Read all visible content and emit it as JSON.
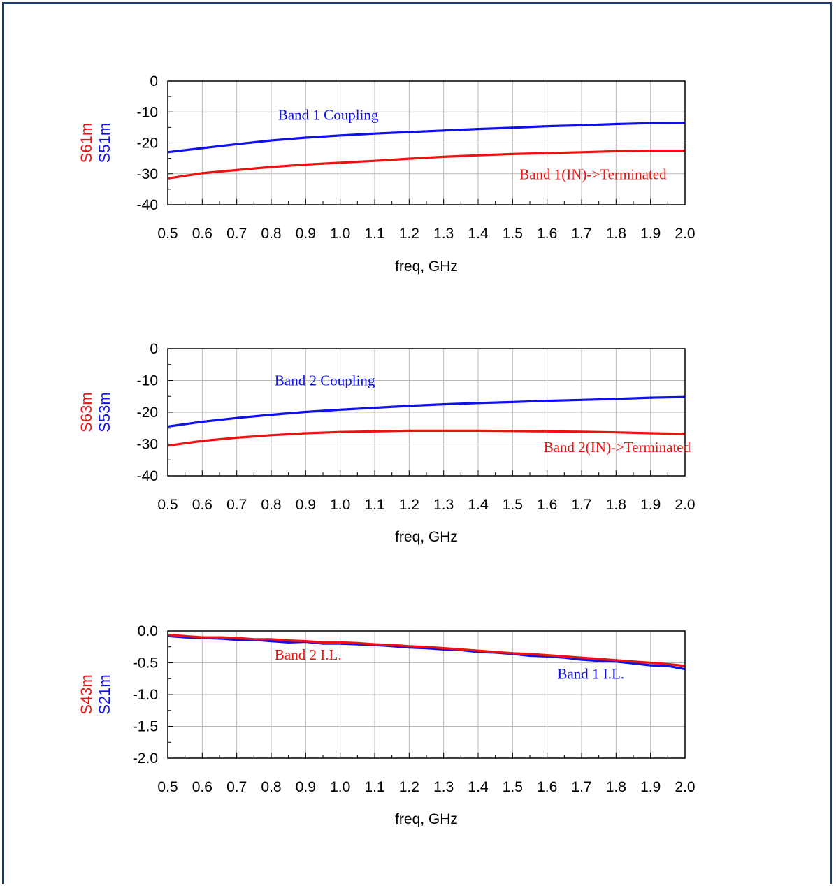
{
  "colors": {
    "blue": "#1010ee",
    "red": "#ee1111",
    "frame": "#1f3a78",
    "grid": "#b8b8b8"
  },
  "chart_data": [
    {
      "type": "line",
      "xlabel": "freq, GHz",
      "ylabels": [
        "S61m",
        "S51m"
      ],
      "xlim": [
        0.5,
        2.0
      ],
      "ylim": [
        -40,
        0
      ],
      "xticks": [
        "0.5",
        "0.6",
        "0.7",
        "0.8",
        "0.9",
        "1.0",
        "1.1",
        "1.2",
        "1.3",
        "1.4",
        "1.5",
        "1.6",
        "1.7",
        "1.8",
        "1.9",
        "2.0"
      ],
      "yticks": [
        "0",
        "-10",
        "-20",
        "-30",
        "-40"
      ],
      "grid": true,
      "series": [
        {
          "name": "S51m",
          "color": "#1010ee",
          "x": [
            0.5,
            0.6,
            0.7,
            0.8,
            0.9,
            1.0,
            1.1,
            1.2,
            1.3,
            1.4,
            1.5,
            1.6,
            1.7,
            1.8,
            1.9,
            2.0
          ],
          "y": [
            -23,
            -21.7,
            -20.4,
            -19.2,
            -18.3,
            -17.6,
            -17.0,
            -16.5,
            -16.0,
            -15.5,
            -15.1,
            -14.6,
            -14.3,
            -13.9,
            -13.6,
            -13.5
          ]
        },
        {
          "name": "S61m",
          "color": "#ee1111",
          "x": [
            0.5,
            0.6,
            0.7,
            0.8,
            0.9,
            1.0,
            1.1,
            1.2,
            1.3,
            1.4,
            1.5,
            1.6,
            1.7,
            1.8,
            1.9,
            2.0
          ],
          "y": [
            -31.5,
            -29.8,
            -28.8,
            -27.8,
            -27.0,
            -26.4,
            -25.8,
            -25.1,
            -24.5,
            -24.0,
            -23.6,
            -23.3,
            -23.0,
            -22.7,
            -22.5,
            -22.5
          ]
        }
      ],
      "annotations": [
        {
          "text": "Band 1 Coupling",
          "color": "#1010ee",
          "x": 0.82,
          "y": -12.5
        },
        {
          "text": "Band 1(IN)->Terminated",
          "color": "#ee1111",
          "x": 1.52,
          "y": -31.7
        }
      ]
    },
    {
      "type": "line",
      "xlabel": "freq, GHz",
      "ylabels": [
        "S63m",
        "S53m"
      ],
      "xlim": [
        0.5,
        2.0
      ],
      "ylim": [
        -40,
        0
      ],
      "xticks": [
        "0.5",
        "0.6",
        "0.7",
        "0.8",
        "0.9",
        "1.0",
        "1.1",
        "1.2",
        "1.3",
        "1.4",
        "1.5",
        "1.6",
        "1.7",
        "1.8",
        "1.9",
        "2.0"
      ],
      "yticks": [
        "0",
        "-10",
        "-20",
        "-30",
        "-40"
      ],
      "grid": true,
      "series": [
        {
          "name": "S53m",
          "color": "#1010ee",
          "x": [
            0.5,
            0.6,
            0.7,
            0.8,
            0.9,
            1.0,
            1.1,
            1.2,
            1.3,
            1.4,
            1.5,
            1.6,
            1.7,
            1.8,
            1.9,
            2.0
          ],
          "y": [
            -24.5,
            -23.0,
            -21.8,
            -20.8,
            -19.9,
            -19.2,
            -18.6,
            -18.0,
            -17.5,
            -17.1,
            -16.8,
            -16.4,
            -16.1,
            -15.8,
            -15.4,
            -15.2
          ]
        },
        {
          "name": "S63m",
          "color": "#ee1111",
          "x": [
            0.5,
            0.6,
            0.7,
            0.8,
            0.9,
            1.0,
            1.1,
            1.2,
            1.3,
            1.4,
            1.5,
            1.6,
            1.7,
            1.8,
            1.9,
            2.0
          ],
          "y": [
            -30.5,
            -29.0,
            -28.0,
            -27.2,
            -26.6,
            -26.2,
            -26.0,
            -25.8,
            -25.8,
            -25.8,
            -25.9,
            -26.0,
            -26.1,
            -26.3,
            -26.6,
            -26.8
          ]
        }
      ],
      "annotations": [
        {
          "text": "Band 2 Coupling",
          "color": "#1010ee",
          "x": 0.81,
          "y": -11.5
        },
        {
          "text": "Band 2(IN)->Terminated",
          "color": "#ee1111",
          "x": 1.59,
          "y": -32.5
        }
      ]
    },
    {
      "type": "line",
      "xlabel": "freq, GHz",
      "ylabels": [
        "S43m",
        "S21m"
      ],
      "xlim": [
        0.5,
        2.0
      ],
      "ylim": [
        -2.0,
        0.0
      ],
      "xticks": [
        "0.5",
        "0.6",
        "0.7",
        "0.8",
        "0.9",
        "1.0",
        "1.1",
        "1.2",
        "1.3",
        "1.4",
        "1.5",
        "1.6",
        "1.7",
        "1.8",
        "1.9",
        "2.0"
      ],
      "yticks": [
        "0.0",
        "-0.5",
        "-1.0",
        "-1.5",
        "-2.0"
      ],
      "grid": true,
      "series": [
        {
          "name": "S21m",
          "color": "#1010ee",
          "x": [
            0.5,
            0.55,
            0.6,
            0.65,
            0.7,
            0.75,
            0.8,
            0.85,
            0.9,
            0.95,
            1.0,
            1.05,
            1.1,
            1.15,
            1.2,
            1.25,
            1.3,
            1.35,
            1.4,
            1.45,
            1.5,
            1.55,
            1.6,
            1.65,
            1.7,
            1.75,
            1.8,
            1.85,
            1.9,
            1.95,
            2.0
          ],
          "y": [
            -0.08,
            -0.1,
            -0.11,
            -0.12,
            -0.14,
            -0.14,
            -0.16,
            -0.18,
            -0.17,
            -0.2,
            -0.2,
            -0.21,
            -0.22,
            -0.24,
            -0.26,
            -0.27,
            -0.29,
            -0.3,
            -0.33,
            -0.34,
            -0.36,
            -0.39,
            -0.4,
            -0.42,
            -0.45,
            -0.47,
            -0.48,
            -0.51,
            -0.54,
            -0.55,
            -0.6
          ]
        },
        {
          "name": "S43m",
          "color": "#ee1111",
          "x": [
            0.5,
            0.55,
            0.6,
            0.65,
            0.7,
            0.75,
            0.8,
            0.85,
            0.9,
            0.95,
            1.0,
            1.05,
            1.1,
            1.15,
            1.2,
            1.25,
            1.3,
            1.35,
            1.4,
            1.45,
            1.5,
            1.55,
            1.6,
            1.65,
            1.7,
            1.75,
            1.8,
            1.85,
            1.9,
            1.95,
            2.0
          ],
          "y": [
            -0.06,
            -0.08,
            -0.1,
            -0.1,
            -0.11,
            -0.13,
            -0.13,
            -0.15,
            -0.16,
            -0.18,
            -0.18,
            -0.19,
            -0.21,
            -0.22,
            -0.24,
            -0.25,
            -0.27,
            -0.29,
            -0.31,
            -0.33,
            -0.35,
            -0.36,
            -0.38,
            -0.4,
            -0.42,
            -0.44,
            -0.46,
            -0.48,
            -0.5,
            -0.52,
            -0.55
          ]
        }
      ],
      "annotations": [
        {
          "text": "Band 2 I.L.",
          "color": "#ee1111",
          "x": 0.81,
          "y": -0.45
        },
        {
          "text": "Band 1 I.L.",
          "color": "#1010ee",
          "x": 1.63,
          "y": -0.75
        }
      ]
    }
  ]
}
